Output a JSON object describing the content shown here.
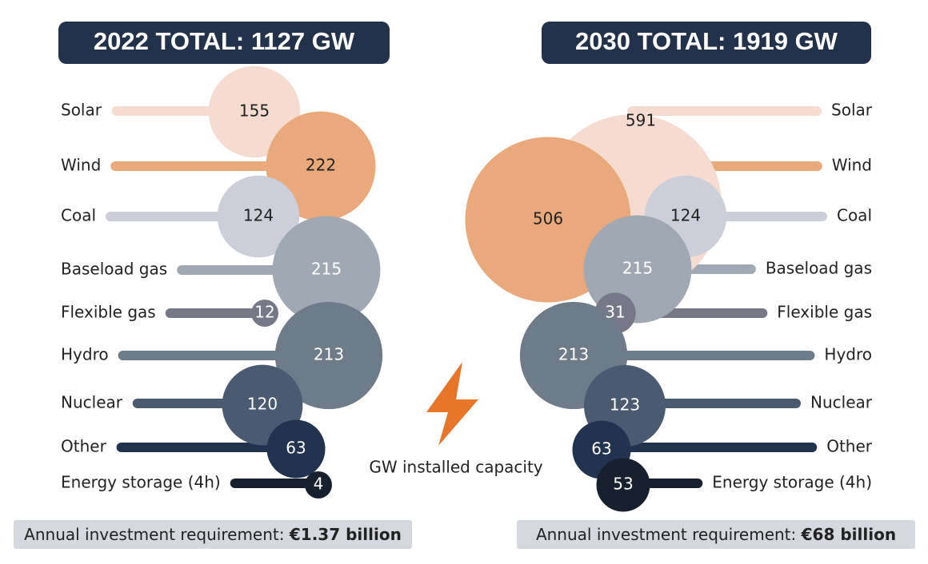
{
  "chart_data": [
    {
      "type": "bubble",
      "title": "2022 TOTAL: 1127 GW",
      "categories": [
        "Solar",
        "Wind",
        "Coal",
        "Baseload gas",
        "Flexible gas",
        "Hydro",
        "Nuclear",
        "Other",
        "Energy storage (4h)"
      ],
      "values": [
        155,
        222,
        124,
        215,
        12,
        213,
        120,
        63,
        4
      ],
      "colors": [
        "#f6dcd0",
        "#eaa97a",
        "#ccced9",
        "#a0a8b4",
        "#767887",
        "#6e7b88",
        "#4a5a70",
        "#22334f",
        "#17202e"
      ],
      "footer_label": "Annual investment requirement:",
      "footer_value": "€1.37 billion"
    },
    {
      "type": "bubble",
      "title": "2030 TOTAL: 1919 GW",
      "categories": [
        "Solar",
        "Wind",
        "Coal",
        "Baseload gas",
        "Flexible gas",
        "Hydro",
        "Nuclear",
        "Other",
        "Energy storage (4h)"
      ],
      "values": [
        591,
        506,
        124,
        215,
        31,
        213,
        123,
        63,
        53
      ],
      "colors": [
        "#f6dcd0",
        "#eaa97a",
        "#ccced9",
        "#a0a8b4",
        "#767887",
        "#6e7b88",
        "#4a5a70",
        "#22334f",
        "#17202e"
      ],
      "footer_label": "Annual investment requirement:",
      "footer_value": "€68 billion"
    }
  ],
  "caption": "GW installed capacity"
}
